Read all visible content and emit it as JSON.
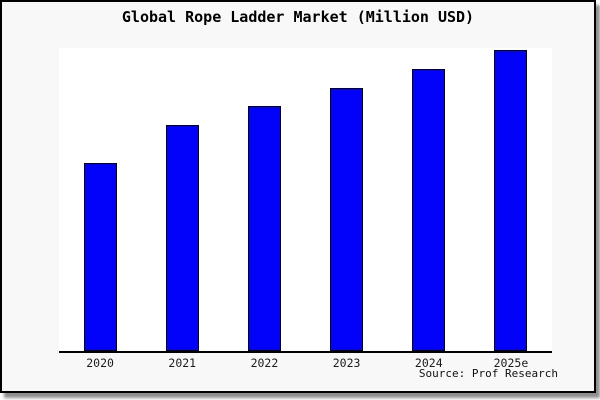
{
  "colors": {
    "figure_bg": "#f8f8f8",
    "plot_bg": "#ffffff",
    "bar_fill": "#0202fa",
    "bar_edge": "#000000",
    "axis_line": "#000000",
    "frame_border": "#000000",
    "shadow": "#8d8d8d",
    "title_text": "#000000",
    "tick_text": "#1c1c1c"
  },
  "chart_data": {
    "type": "bar",
    "title": "Global Rope Ladder Market (Million USD)",
    "categories": [
      "2020",
      "2021",
      "2022",
      "2023",
      "2024",
      "2025e"
    ],
    "values": [
      100,
      120,
      130,
      140,
      150,
      160
    ],
    "ylim": [
      0,
      161
    ],
    "xlabel": "",
    "ylabel": "",
    "grid": false,
    "legend": false,
    "y_axis_ticks_visible": false,
    "bar_color": "#0202fa",
    "source_note": "Source: Prof Research"
  }
}
